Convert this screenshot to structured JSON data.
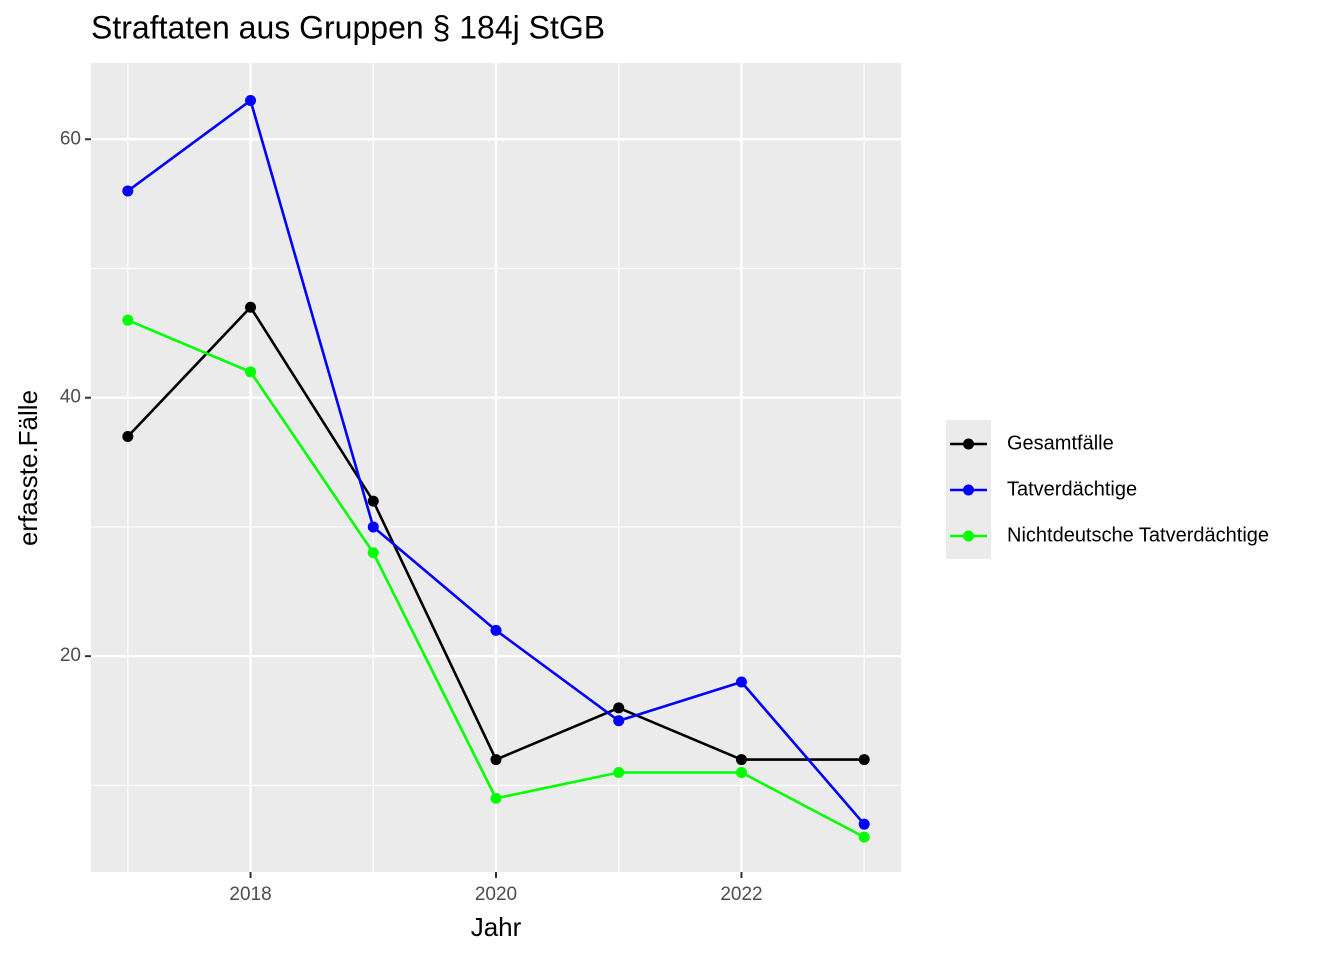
{
  "chart_data": {
    "type": "line",
    "title": "Straftaten aus Gruppen § 184j StGB",
    "x_label": "Jahr",
    "y_label": "erfasste.Fälle",
    "x": [
      2017,
      2018,
      2019,
      2020,
      2021,
      2022,
      2023
    ],
    "series": [
      {
        "name": "Gesamtfälle",
        "color": "#000000",
        "values": [
          37,
          47,
          32,
          12,
          16,
          12,
          12
        ]
      },
      {
        "name": "Tatverdächtige",
        "color": "#0000ff",
        "values": [
          56,
          63,
          30,
          22,
          15,
          18,
          7
        ]
      },
      {
        "name": "Nichtdeutsche Tatverdächtige",
        "color": "#00ff00",
        "values": [
          46,
          42,
          28,
          9,
          11,
          11,
          6
        ]
      }
    ],
    "xlim": [
      2016.7,
      2023.3
    ],
    "ylim": [
      3.3,
      65.9
    ],
    "xticks": [
      2018,
      2020,
      2022
    ],
    "yticks": [
      20,
      40,
      60
    ],
    "grid": true
  }
}
